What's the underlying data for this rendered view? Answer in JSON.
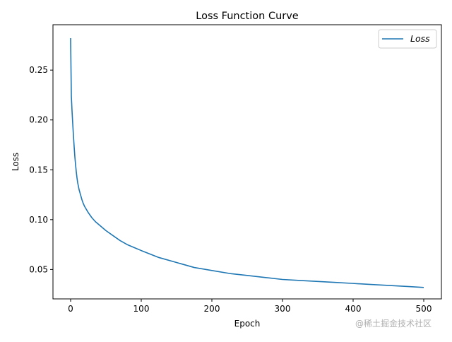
{
  "chart_data": {
    "type": "line",
    "title": "Loss Function Curve",
    "xlabel": "Epoch",
    "ylabel": "Loss",
    "xlim": [
      -25,
      525
    ],
    "ylim": [
      0.0205,
      0.2955
    ],
    "x_ticks": [
      0,
      100,
      200,
      300,
      400,
      500
    ],
    "x_tick_labels": [
      "0",
      "100",
      "200",
      "300",
      "400",
      "500"
    ],
    "y_ticks": [
      0.05,
      0.1,
      0.15,
      0.2,
      0.25
    ],
    "y_tick_labels": [
      "0.05",
      "0.10",
      "0.15",
      "0.20",
      "0.25"
    ],
    "grid": false,
    "legend_position": "top-right",
    "series": [
      {
        "name": "Loss",
        "color": "#1f77b4",
        "x": [
          0,
          1,
          2,
          3,
          4,
          5,
          6,
          7,
          8,
          9,
          10,
          12,
          14,
          16,
          18,
          20,
          25,
          30,
          35,
          40,
          45,
          50,
          60,
          70,
          80,
          90,
          100,
          125,
          150,
          175,
          200,
          225,
          250,
          275,
          300,
          325,
          350,
          375,
          400,
          425,
          450,
          475,
          500
        ],
        "values": [
          0.282,
          0.224,
          0.209,
          0.196,
          0.184,
          0.173,
          0.163,
          0.155,
          0.148,
          0.142,
          0.137,
          0.13,
          0.125,
          0.12,
          0.116,
          0.113,
          0.107,
          0.102,
          0.098,
          0.095,
          0.092,
          0.089,
          0.084,
          0.079,
          0.075,
          0.072,
          0.069,
          0.062,
          0.057,
          0.052,
          0.049,
          0.046,
          0.044,
          0.042,
          0.04,
          0.039,
          0.038,
          0.037,
          0.036,
          0.035,
          0.034,
          0.033,
          0.032
        ]
      }
    ]
  },
  "watermark": "@稀土掘金技术社区"
}
